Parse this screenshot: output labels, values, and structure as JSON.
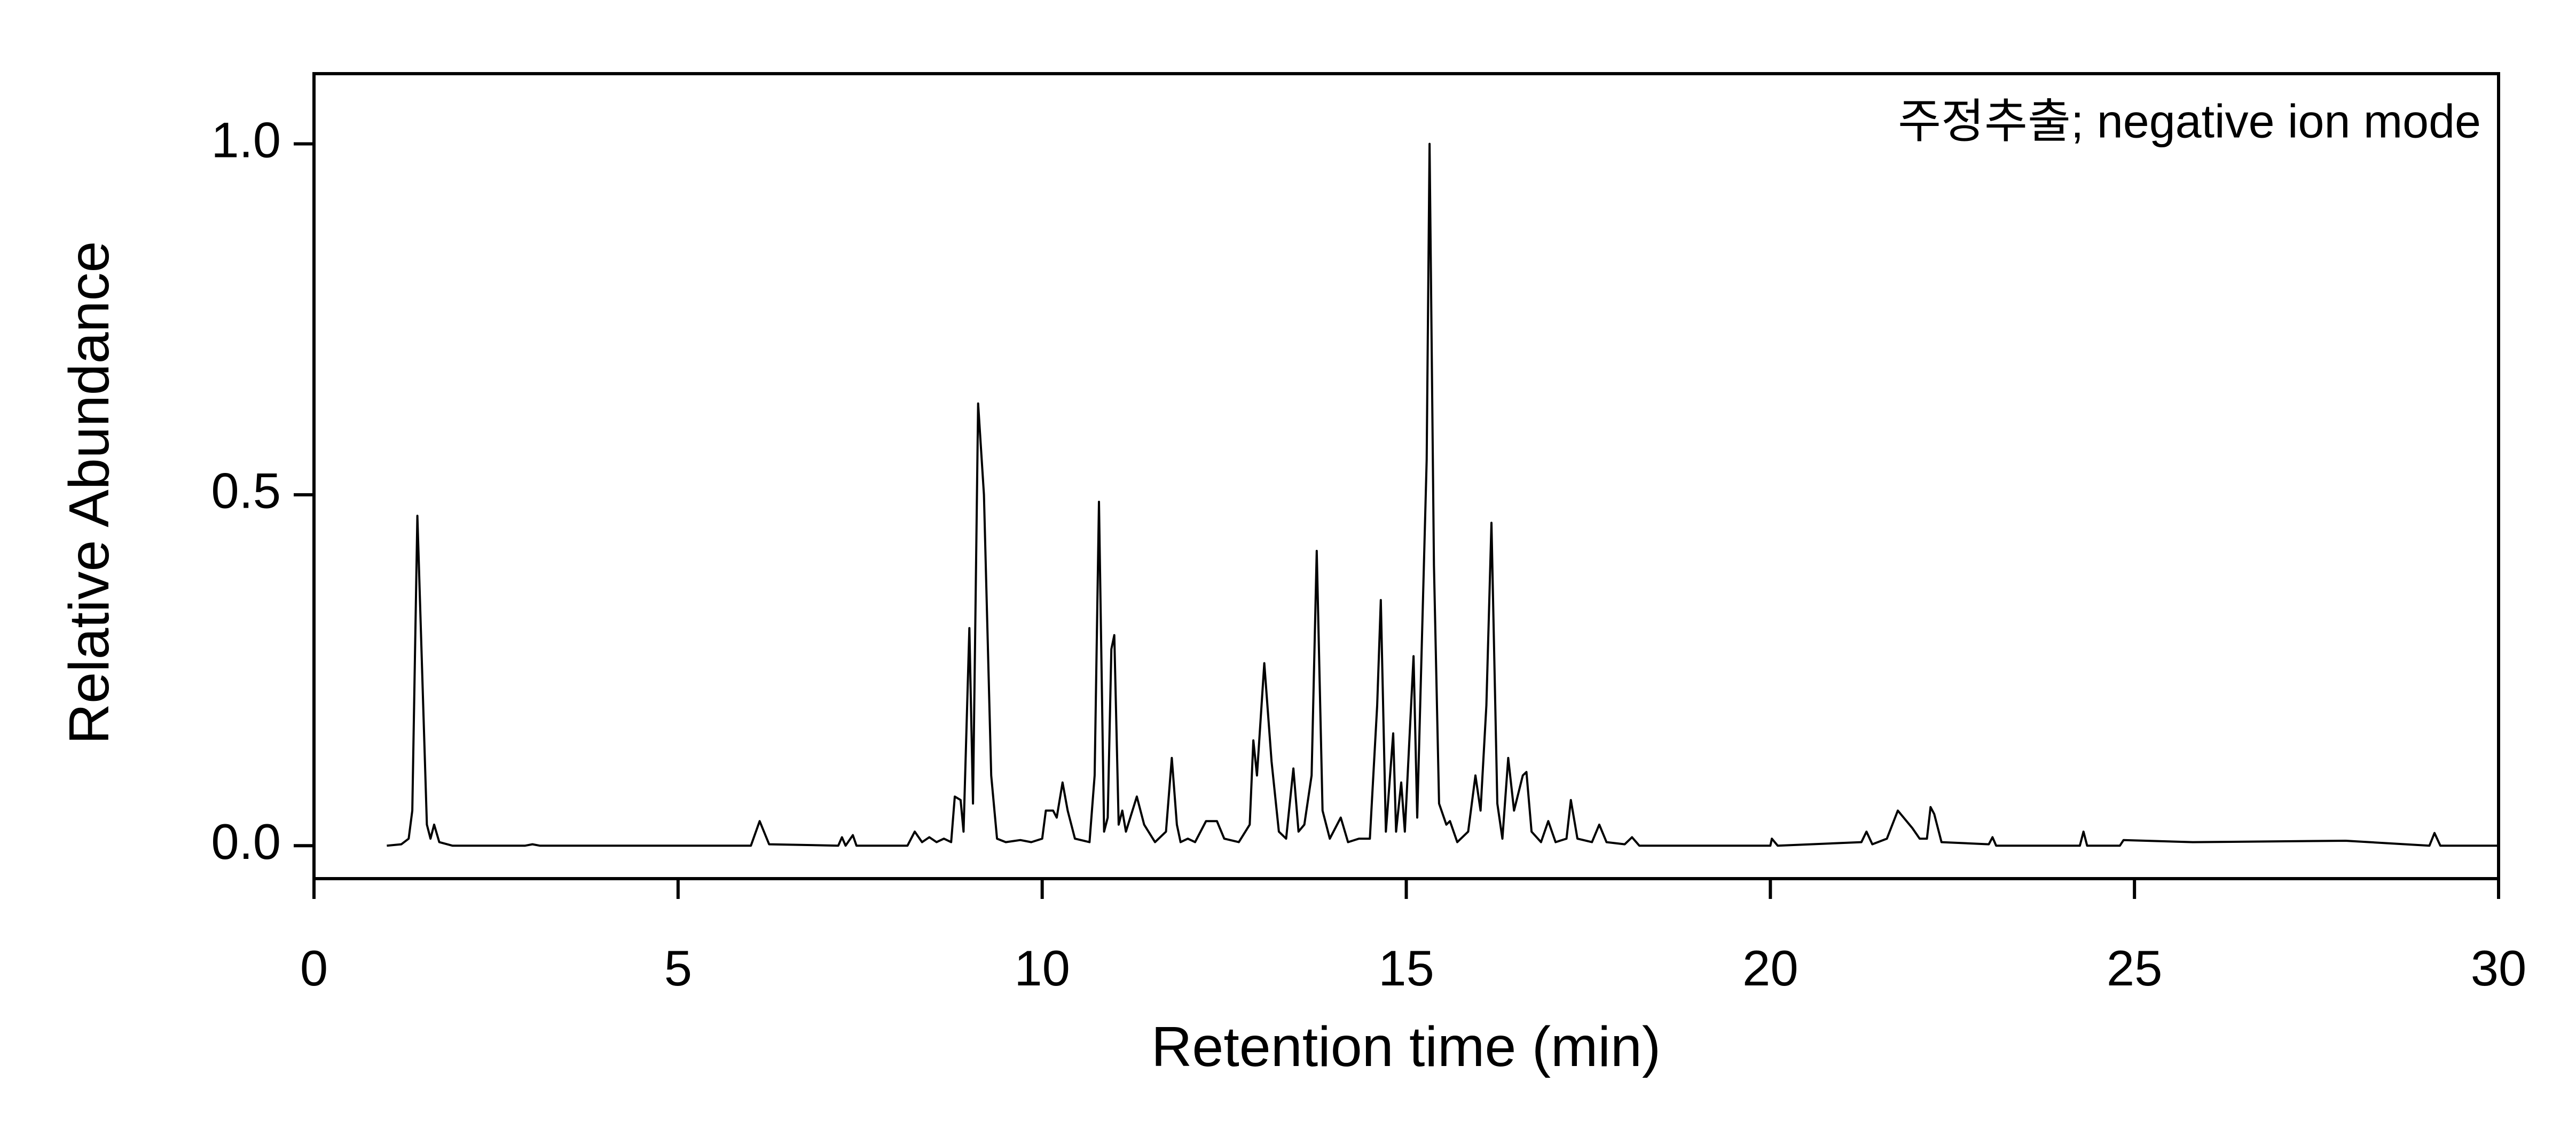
{
  "chart_data": {
    "type": "line",
    "annotation": "주정추출; negative ion mode",
    "xlabel": "Retention time (min)",
    "ylabel": "Relative Abundance",
    "color": "#000000",
    "xlim": [
      0,
      30
    ],
    "xticks": [
      0,
      5,
      10,
      15,
      20,
      25,
      30
    ],
    "ylim": [
      -0.047,
      1.1
    ],
    "yticks": [
      {
        "value": 0,
        "label": "0.0"
      },
      0.5,
      {
        "value": 1,
        "label": "1.0"
      }
    ],
    "x": [
      1.0,
      1.2,
      1.3,
      1.35,
      1.42,
      1.5,
      1.55,
      1.6,
      1.65,
      1.72,
      1.9,
      2.9,
      3.0,
      3.1,
      6.0,
      6.12,
      6.25,
      7.2,
      7.25,
      7.3,
      7.4,
      7.45,
      8.15,
      8.25,
      8.35,
      8.45,
      8.55,
      8.65,
      8.75,
      8.8,
      8.88,
      8.92,
      9.0,
      9.05,
      9.12,
      9.2,
      9.3,
      9.38,
      9.5,
      9.7,
      9.85,
      10.0,
      10.05,
      10.15,
      10.2,
      10.28,
      10.35,
      10.45,
      10.65,
      10.72,
      10.78,
      10.85,
      10.9,
      10.95,
      10.99,
      11.05,
      11.1,
      11.15,
      11.3,
      11.4,
      11.55,
      11.7,
      11.78,
      11.85,
      11.9,
      12.0,
      12.1,
      12.25,
      12.4,
      12.5,
      12.7,
      12.85,
      12.9,
      12.95,
      13.05,
      13.15,
      13.25,
      13.35,
      13.45,
      13.52,
      13.6,
      13.7,
      13.77,
      13.85,
      13.95,
      14.1,
      14.2,
      14.35,
      14.5,
      14.6,
      14.65,
      14.72,
      14.82,
      14.86,
      14.93,
      14.98,
      15.1,
      15.15,
      15.28,
      15.32,
      15.38,
      15.45,
      15.55,
      15.6,
      15.7,
      15.85,
      15.95,
      16.02,
      16.1,
      16.17,
      16.25,
      16.32,
      16.4,
      16.48,
      16.6,
      16.65,
      16.72,
      16.85,
      16.95,
      17.05,
      17.2,
      17.26,
      17.35,
      17.55,
      17.65,
      17.75,
      18.0,
      18.1,
      18.2,
      20.0,
      20.02,
      20.1,
      21.25,
      21.32,
      21.4,
      21.6,
      21.75,
      21.95,
      22.05,
      22.15,
      22.2,
      22.25,
      22.35,
      23.0,
      23.05,
      23.1,
      24.25,
      24.3,
      24.35,
      24.8,
      24.85,
      25.8,
      27.9,
      29.05,
      29.12,
      29.2,
      30
    ],
    "values": [
      0,
      0.002,
      0.01,
      0.05,
      0.47,
      0.2,
      0.03,
      0.01,
      0.03,
      0.005,
      0,
      0,
      0.002,
      0,
      0,
      0.035,
      0.002,
      0,
      0.012,
      0,
      0.015,
      0,
      0,
      0.02,
      0.005,
      0.012,
      0.005,
      0.01,
      0.005,
      0.07,
      0.065,
      0.02,
      0.31,
      0.06,
      0.63,
      0.5,
      0.1,
      0.01,
      0.005,
      0.008,
      0.005,
      0.01,
      0.05,
      0.05,
      0.04,
      0.09,
      0.05,
      0.01,
      0.005,
      0.1,
      0.49,
      0.02,
      0.04,
      0.28,
      0.3,
      0.03,
      0.05,
      0.02,
      0.07,
      0.03,
      0.005,
      0.02,
      0.125,
      0.03,
      0.005,
      0.01,
      0.005,
      0.035,
      0.035,
      0.01,
      0.005,
      0.03,
      0.15,
      0.1,
      0.26,
      0.12,
      0.02,
      0.01,
      0.11,
      0.02,
      0.03,
      0.1,
      0.42,
      0.05,
      0.01,
      0.04,
      0.005,
      0.01,
      0.01,
      0.2,
      0.35,
      0.02,
      0.16,
      0.02,
      0.09,
      0.02,
      0.27,
      0.04,
      0.55,
      1.0,
      0.4,
      0.06,
      0.03,
      0.035,
      0.005,
      0.02,
      0.1,
      0.05,
      0.2,
      0.46,
      0.06,
      0.01,
      0.125,
      0.05,
      0.1,
      0.105,
      0.02,
      0.005,
      0.035,
      0.005,
      0.01,
      0.065,
      0.01,
      0.005,
      0.03,
      0.005,
      0.002,
      0.012,
      0,
      0,
      0.01,
      0,
      0.005,
      0.02,
      0.002,
      0.01,
      0.05,
      0.025,
      0.01,
      0.01,
      0.055,
      0.045,
      0.005,
      0.002,
      0.012,
      0,
      0,
      0.02,
      0,
      0,
      0.008,
      0.005,
      0.007,
      0,
      0.018,
      0,
      0
    ]
  }
}
